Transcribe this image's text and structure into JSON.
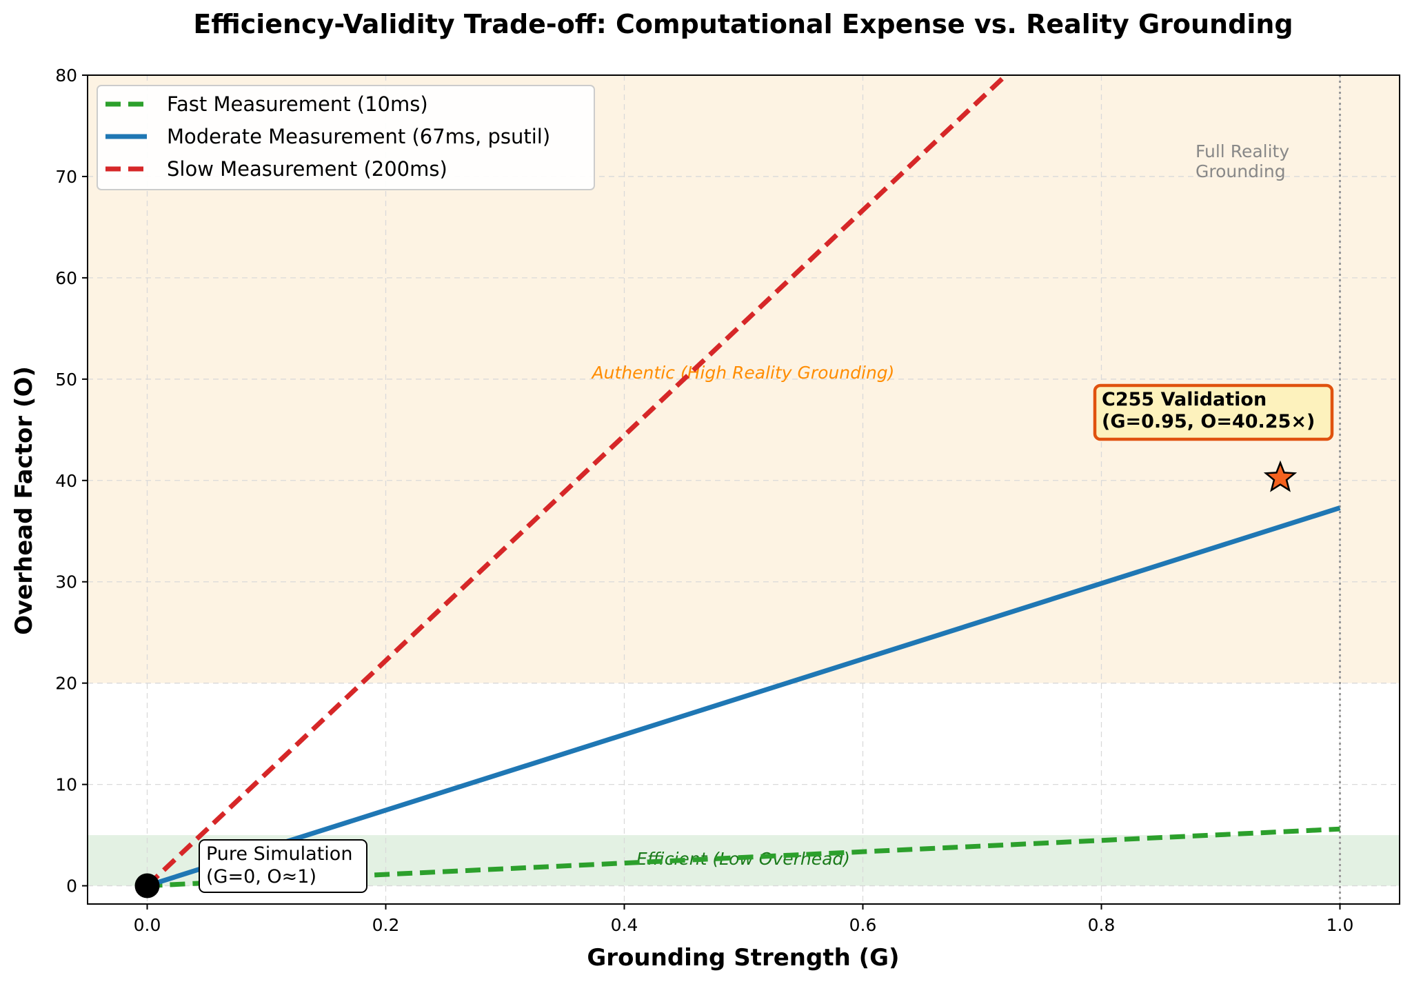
{
  "chart_data": {
    "type": "line",
    "title": "Efficiency-Validity Trade-off: Computational Expense vs. Reality Grounding",
    "xlabel": "Grounding Strength (G)",
    "ylabel": "Overhead Factor (O)",
    "xlim": [
      -0.05,
      1.05
    ],
    "ylim": [
      -1.8,
      80
    ],
    "xticks": [
      0.0,
      0.2,
      0.4,
      0.6,
      0.8,
      1.0
    ],
    "xtick_labels": [
      "0.0",
      "0.2",
      "0.4",
      "0.6",
      "0.8",
      "1.0"
    ],
    "yticks": [
      0,
      10,
      20,
      30,
      40,
      50,
      60,
      70,
      80
    ],
    "ytick_labels": [
      "0",
      "10",
      "20",
      "30",
      "40",
      "50",
      "60",
      "70",
      "80"
    ],
    "grid": true,
    "legend_position": "top-left",
    "series": [
      {
        "name": "Fast Measurement (10ms)",
        "x": [
          0,
          1.0
        ],
        "y": [
          0,
          5.6
        ],
        "color": "#2ca02c",
        "style": "dashed"
      },
      {
        "name": "Moderate Measurement (67ms, psutil)",
        "x": [
          0,
          1.0
        ],
        "y": [
          0,
          37.3
        ],
        "color": "#1f77b4",
        "style": "solid"
      },
      {
        "name": "Slow Measurement (200ms)",
        "x": [
          0,
          0.72
        ],
        "y": [
          0,
          80
        ],
        "color": "#d62728",
        "style": "dashed"
      }
    ],
    "regions": [
      {
        "label": "Authentic (High Reality Grounding)",
        "y_from": 20,
        "y_to": 80,
        "color": "#fdf3e3",
        "label_color": "#ff8c00"
      },
      {
        "label": "Efficient (Low Overhead)",
        "y_from": 0,
        "y_to": 5,
        "color": "#e3f1e3",
        "label_color": "#1a7a1a"
      }
    ],
    "vline": {
      "x": 1.0,
      "label_lines": [
        "Full Reality",
        "Grounding"
      ],
      "color": "#999999"
    },
    "points": [
      {
        "name": "Pure Simulation",
        "x": 0,
        "y": 0,
        "marker": "circle",
        "color": "#000000",
        "label_lines": [
          "Pure Simulation",
          "(G=0, O≈1)"
        ]
      },
      {
        "name": "C255 Validation",
        "x": 0.95,
        "y": 40.25,
        "marker": "star",
        "color": "#f4621f",
        "label_lines": [
          "C255 Validation",
          "(G=0.95, O=40.25×)"
        ]
      }
    ]
  }
}
